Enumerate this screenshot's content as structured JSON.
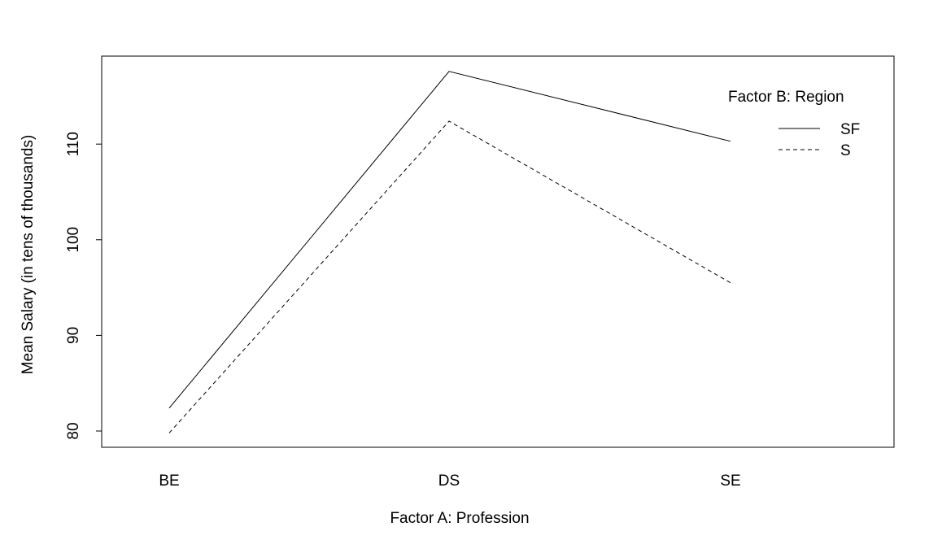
{
  "chart_data": {
    "type": "line",
    "xlabel": "Factor A: Profession",
    "ylabel": "Mean Salary (in tens of thousands)",
    "categories": [
      "BE",
      "DS",
      "SE"
    ],
    "ylim": [
      78.3,
      119.2
    ],
    "yticks": [
      80,
      90,
      100,
      110
    ],
    "grid": false,
    "legend": {
      "title": "Factor B: Region",
      "placement": "top-right"
    },
    "series": [
      {
        "name": "SF",
        "values": [
          82.4,
          117.6,
          110.3
        ],
        "line_style": "solid",
        "color": "#000000"
      },
      {
        "name": "S",
        "values": [
          79.8,
          112.4,
          95.5
        ],
        "line_style": "dashed",
        "color": "#000000"
      }
    ]
  }
}
